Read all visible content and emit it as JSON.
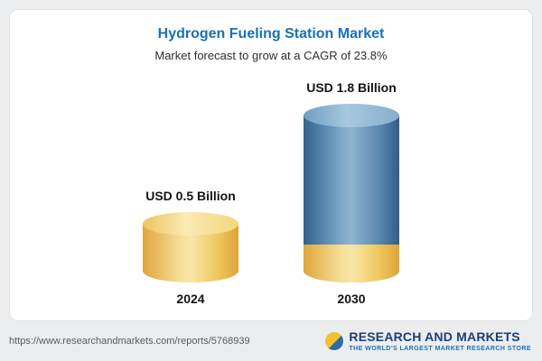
{
  "chart_data": {
    "type": "bar",
    "title": "Hydrogen Fueling Station Market",
    "subtitle": "Market forecast to grow at a CAGR of 23.8%",
    "cagr_percent": 23.8,
    "categories": [
      "2024",
      "2030"
    ],
    "values": [
      0.5,
      1.8
    ],
    "value_labels": [
      "USD 0.5 Billion",
      "USD 1.8 Billion"
    ],
    "unit": "USD Billion",
    "legend": false,
    "axes": "none",
    "colors": {
      "title": "#1a70b8",
      "bar_2024": "#f3ce63",
      "bar_2030": "#4e81ac",
      "bar_2030_base": "#f3ce63"
    }
  },
  "footer": {
    "url": "https://www.researchandmarkets.com/reports/5768939",
    "logo": {
      "name": "RESEARCH AND MARKETS",
      "tagline": "THE WORLD'S LARGEST MARKET RESEARCH STORE"
    }
  }
}
